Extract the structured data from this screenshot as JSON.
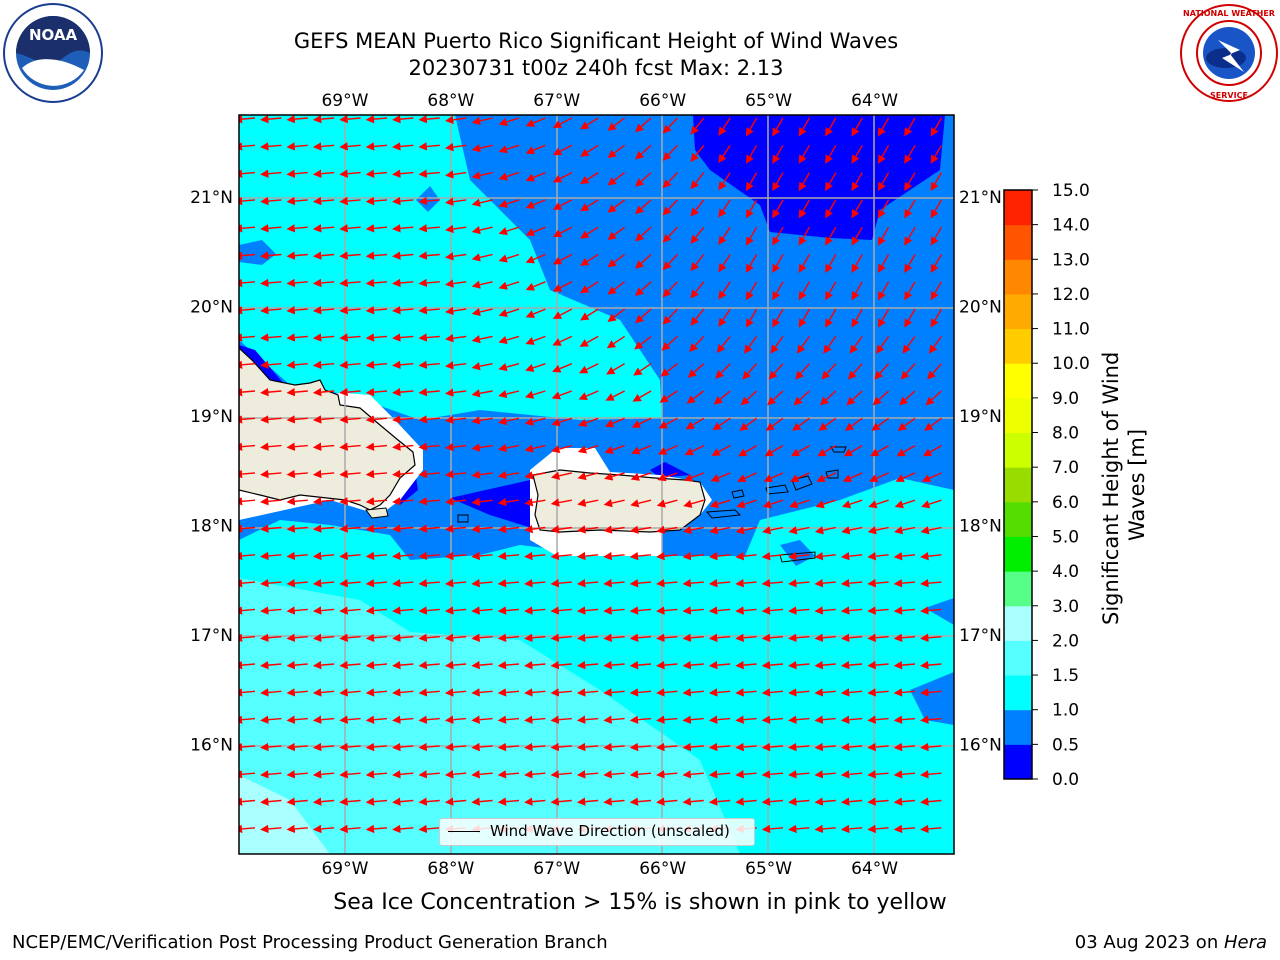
{
  "title": {
    "line1": "GEFS MEAN Puerto Rico Significant Height of Wind Waves",
    "line2": "20230731 t00z 240h fcst   Max: 2.13"
  },
  "logos": {
    "left": {
      "icon": "noaa-logo",
      "text": "NOAA"
    },
    "right": {
      "icon": "nws-logo",
      "text": "NATIONAL WEATHER SERVICE"
    }
  },
  "map": {
    "lon_labels": [
      "69°W",
      "68°W",
      "67°W",
      "66°W",
      "65°W",
      "64°W"
    ],
    "lat_labels": [
      "21°N",
      "20°N",
      "19°N",
      "18°N",
      "17°N",
      "16°N"
    ],
    "extent": {
      "lon_min": -70.0,
      "lon_max": -63.25,
      "lat_min": 15.0,
      "lat_max": 21.75
    },
    "arrow_color": "#ff0000",
    "land_color": "#eeecdc",
    "legend_label": "Wind Wave Direction (unscaled)"
  },
  "colorbar": {
    "label": "Significant Height of Wind Waves [m]",
    "tick_labels": [
      "0.0",
      "0.5",
      "1.0",
      "1.5",
      "2.0",
      "3.0",
      "4.0",
      "5.0",
      "6.0",
      "7.0",
      "8.0",
      "9.0",
      "10.0",
      "11.0",
      "12.0",
      "13.0",
      "14.0",
      "15.0"
    ],
    "colors": [
      "#0000ff",
      "#0080ff",
      "#00ffff",
      "#55ffff",
      "#aaffff",
      "#55ff88",
      "#00ee00",
      "#55dd00",
      "#99dd00",
      "#ccff00",
      "#eeff00",
      "#ffff00",
      "#ffcc00",
      "#ffaa00",
      "#ff8800",
      "#ff5500",
      "#ff2200"
    ]
  },
  "ice_note": "Sea Ice Concentration > 15% is shown in pink to yellow",
  "footer": {
    "left": "NCEP/EMC/Verification Post Processing Product Generation Branch",
    "right_prefix": "03 Aug 2023 on ",
    "right_machine": "Hera"
  }
}
